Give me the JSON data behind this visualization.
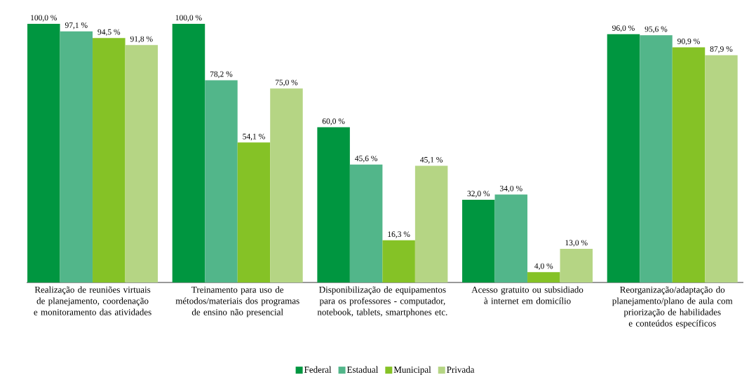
{
  "chart_data": {
    "type": "bar",
    "categories": [
      "Realização de reuniões virtuais de planejamento, coordenação e monitoramento das atividades",
      "Treinamento para uso de métodos/materiais dos  programas de ensino não presencial",
      "Disponibilização de equipamentos para os professores - computador, notebook, tablets, smartphones etc.",
      "Acesso gratuito ou subsidiado à internet em domicílio",
      "Reorganização/adaptação do planejamento/plano de aula com priorização de habilidades e conteúdos específicos"
    ],
    "series": [
      {
        "name": "Federal",
        "color": "#009640",
        "values": [
          100.0,
          100.0,
          60.0,
          32.0,
          96.0
        ],
        "value_labels": [
          "100,0 %",
          "100,0 %",
          "60,0 %",
          "32,0 %",
          "96,0 %"
        ]
      },
      {
        "name": "Estadual",
        "color": "#52b68a",
        "values": [
          97.1,
          78.2,
          45.6,
          34.0,
          95.6
        ],
        "value_labels": [
          "97,1 %",
          "78,2 %",
          "45,6 %",
          "34,0 %",
          "95,6 %"
        ]
      },
      {
        "name": "Municipal",
        "color": "#85c226",
        "values": [
          94.5,
          54.1,
          16.3,
          4.0,
          90.9
        ],
        "value_labels": [
          "94,5 %",
          "54,1 %",
          "16,3 %",
          "4,0 %",
          "90,9 %"
        ]
      },
      {
        "name": "Privada",
        "color": "#b5d584",
        "values": [
          91.8,
          75.0,
          45.1,
          13.0,
          87.9
        ],
        "value_labels": [
          "91,8 %",
          "75,0 %",
          "45,1 %",
          "13,0 %",
          "87,9 %"
        ]
      }
    ],
    "ylim": [
      0,
      100
    ],
    "legend": "bottom"
  }
}
